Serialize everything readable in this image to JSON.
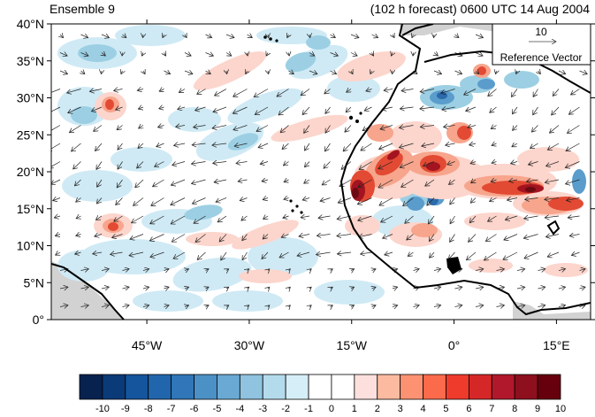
{
  "title": {
    "left": "Ensemble 9",
    "right": "(102 h forecast) 0600 UTC 14 Aug 2004"
  },
  "map": {
    "lat_labels": [
      "0°",
      "5°N",
      "10°N",
      "15°N",
      "20°N",
      "25°N",
      "30°N",
      "35°N",
      "40°N"
    ],
    "lat_values": [
      0,
      5,
      10,
      15,
      20,
      25,
      30,
      35,
      40
    ],
    "lon_labels": [
      "45°W",
      "30°W",
      "15°W",
      "0°",
      "15°E"
    ],
    "lon_values": [
      -45,
      -30,
      -15,
      0,
      15
    ],
    "lon_range": [
      -59,
      20
    ],
    "lat_range": [
      0,
      40
    ]
  },
  "reference_vector": {
    "magnitude": "10",
    "label": "Reference Vector"
  },
  "colorbar": {
    "labels": [
      "-10",
      "-9",
      "-8",
      "-7",
      "-6",
      "-5",
      "-4",
      "-3",
      "-2",
      "-1",
      "0",
      "1",
      "2",
      "3",
      "4",
      "5",
      "6",
      "7",
      "8",
      "9",
      "10"
    ],
    "colors": [
      "#08224f",
      "#0b3a78",
      "#14559e",
      "#2166ac",
      "#3076b8",
      "#4b91c6",
      "#6aa9d3",
      "#8fc3df",
      "#b4dbec",
      "#d6eef7",
      "#ffffff",
      "#ffffff",
      "#fde0dd",
      "#fcbba1",
      "#fc9272",
      "#fb6a4a",
      "#ef3b2c",
      "#d62728",
      "#b2182b",
      "#8e0f1e",
      "#67000d"
    ]
  },
  "colors": {
    "land_gray": "#d2d2d2",
    "coast": "#000000"
  }
}
